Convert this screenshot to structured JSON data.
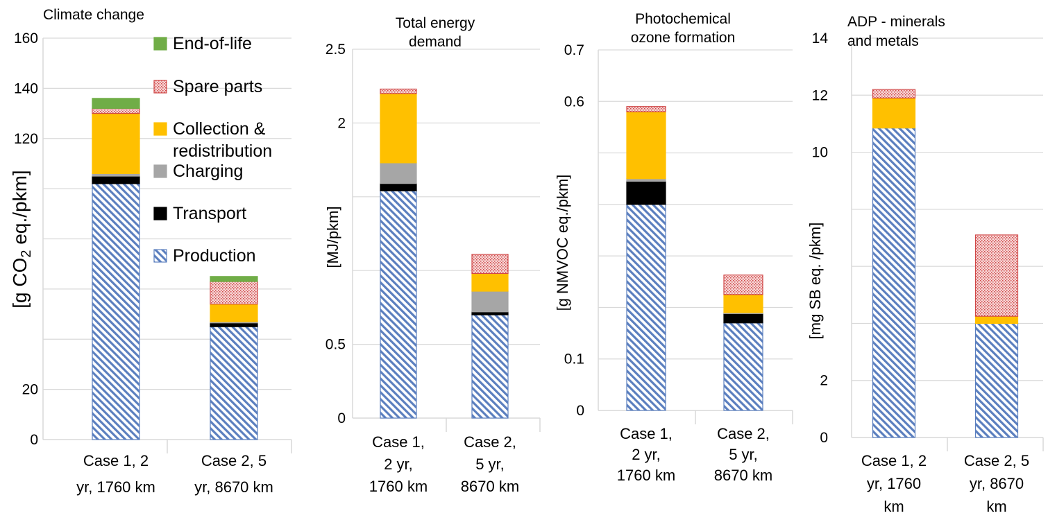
{
  "legend": {
    "items": [
      {
        "key": "eol",
        "label": "End-of-life"
      },
      {
        "key": "spare",
        "label": "Spare parts"
      },
      {
        "key": "coll",
        "label": "Collection &\nredistribution"
      },
      {
        "key": "charg",
        "label": "Charging"
      },
      {
        "key": "trans",
        "label": "Transport"
      },
      {
        "key": "prod",
        "label": "Production"
      }
    ]
  },
  "colors": {
    "prod_line": "#5b7fbf",
    "trans": "#000000",
    "charg": "#a6a6a6",
    "coll": "#ffc000",
    "spare_fill": "#f6d6d6",
    "spare_dot": "#d04848",
    "eol": "#70ad47"
  },
  "chart_data": [
    {
      "type": "bar",
      "stacked": true,
      "title": "Climate change",
      "ylabel": "[g CO₂ eq./pkm]",
      "ylim": [
        0,
        160
      ],
      "yticks": [
        0,
        20,
        40,
        60,
        80,
        100,
        120,
        140,
        160
      ],
      "yticklabels": [
        "0",
        "20",
        "",
        "",
        "",
        "",
        "120",
        "140",
        "160"
      ],
      "categories": [
        "Case 1, 2\nyr, 1760 km",
        "Case 2, 5\nyr, 8670 km"
      ],
      "series": [
        {
          "key": "prod",
          "name": "Production",
          "values": [
            102,
            45
          ]
        },
        {
          "key": "trans",
          "name": "Transport",
          "values": [
            3,
            1.5
          ]
        },
        {
          "key": "charg",
          "name": "Charging",
          "values": [
            1,
            0.5
          ]
        },
        {
          "key": "coll",
          "name": "Collection & redistribution",
          "values": [
            24,
            7
          ]
        },
        {
          "key": "spare",
          "name": "Spare parts",
          "values": [
            2,
            9
          ]
        },
        {
          "key": "eol",
          "name": "End-of-life",
          "values": [
            4,
            2
          ]
        }
      ]
    },
    {
      "type": "bar",
      "stacked": true,
      "title": "Total energy\ndemand",
      "ylabel": "[MJ/pkm]",
      "ylim": [
        0,
        2.5
      ],
      "yticks": [
        0,
        0.5,
        1,
        1.5,
        2,
        2.5
      ],
      "yticklabels": [
        "0",
        "0.5",
        "",
        "",
        "2",
        "2.5"
      ],
      "categories": [
        "Case 1,\n2 yr,\n1760 km",
        "Case 2,\n5 yr,\n8670 km"
      ],
      "series": [
        {
          "key": "prod",
          "name": "Production",
          "values": [
            1.54,
            0.7
          ]
        },
        {
          "key": "trans",
          "name": "Transport",
          "values": [
            0.05,
            0.02
          ]
        },
        {
          "key": "charg",
          "name": "Charging",
          "values": [
            0.14,
            0.14
          ]
        },
        {
          "key": "coll",
          "name": "Collection & redistribution",
          "values": [
            0.47,
            0.12
          ]
        },
        {
          "key": "spare",
          "name": "Spare parts",
          "values": [
            0.03,
            0.13
          ]
        }
      ]
    },
    {
      "type": "bar",
      "stacked": true,
      "title": "Photochemical\nozone formation",
      "ylabel": "[g NMVOC eq./pkm]",
      "ylim": [
        0,
        0.7
      ],
      "yticks": [
        0,
        0.1,
        0.2,
        0.3,
        0.4,
        0.5,
        0.6,
        0.7
      ],
      "yticklabels": [
        "0",
        "0.1",
        "",
        "",
        "",
        "",
        "0.6",
        "0.7"
      ],
      "categories": [
        "Case 1,\n2 yr,\n1760 km",
        "Case 2,\n5 yr,\n8670 km"
      ],
      "series": [
        {
          "key": "prod",
          "name": "Production",
          "values": [
            0.4,
            0.17
          ]
        },
        {
          "key": "trans",
          "name": "Transport",
          "values": [
            0.045,
            0.018
          ]
        },
        {
          "key": "charg",
          "name": "Charging",
          "values": [
            0.005,
            0.002
          ]
        },
        {
          "key": "coll",
          "name": "Collection & redistribution",
          "values": [
            0.13,
            0.035
          ]
        },
        {
          "key": "spare",
          "name": "Spare parts",
          "values": [
            0.01,
            0.038
          ]
        }
      ]
    },
    {
      "type": "bar",
      "stacked": true,
      "title": "ADP - minerals\nand metals",
      "ylabel": "[mg SB eq. /pkm]",
      "ylim": [
        0,
        14
      ],
      "yticks": [
        0,
        2,
        4,
        6,
        8,
        10,
        12,
        14
      ],
      "yticklabels": [
        "0",
        "2",
        "",
        "",
        "",
        "10",
        "12",
        "14"
      ],
      "categories": [
        "Case 1, 2\nyr, 1760\nkm",
        "Case 2, 5\nyr, 8670\nkm"
      ],
      "series": [
        {
          "key": "prod",
          "name": "Production",
          "values": [
            10.85,
            4
          ]
        },
        {
          "key": "coll",
          "name": "Collection & redistribution",
          "values": [
            1.05,
            0.25
          ]
        },
        {
          "key": "spare",
          "name": "Spare parts",
          "values": [
            0.3,
            2.85
          ]
        }
      ]
    }
  ]
}
